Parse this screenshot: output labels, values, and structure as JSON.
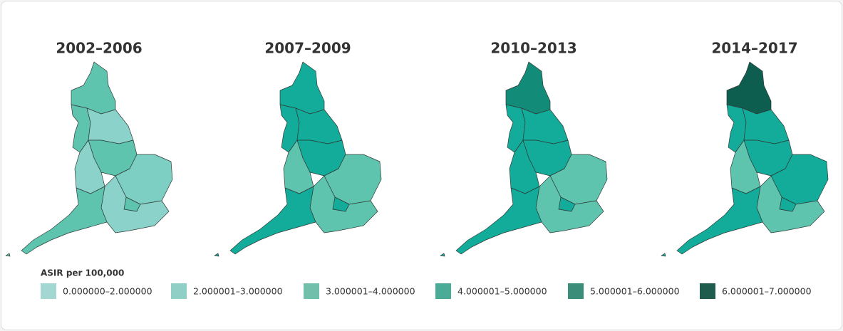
{
  "panels": [
    {
      "title": "2002–2006",
      "fills": [
        "#5ec4ae",
        "#5ec4ae",
        "#8bd3ca",
        "#5ec4ae",
        "#8bd3ca",
        "#7dcfc3",
        "#5ec4ae",
        "#8bd3ca",
        "#5ec4ae"
      ]
    },
    {
      "title": "2007–2009",
      "fills": [
        "#13ab99",
        "#13ab99",
        "#13ab99",
        "#13ab99",
        "#5ec4ae",
        "#5ec4ae",
        "#13ab99",
        "#5ec4ae",
        "#13ab99"
      ]
    },
    {
      "title": "2010–2013",
      "fills": [
        "#128c78",
        "#13ab99",
        "#13ab99",
        "#13ab99",
        "#13ab99",
        "#5ec4ae",
        "#13ab99",
        "#5ec4ae",
        "#13ab99"
      ]
    },
    {
      "title": "2014–2017",
      "fills": [
        "#0e5e4f",
        "#13ab99",
        "#13ab99",
        "#13ab99",
        "#5ec4ae",
        "#13ab99",
        "#13ab99",
        "#5ec4ae",
        "#13ab99"
      ]
    }
  ],
  "legend": {
    "title": "ASIR per 100,000",
    "items": [
      {
        "label": "0.000000–2.000000",
        "color": "#a3d8d2"
      },
      {
        "label": "2.000001–3.000000",
        "color": "#8fcfc6"
      },
      {
        "label": "3.000001–4.000000",
        "color": "#72c0ab"
      },
      {
        "label": "4.000001–5.000000",
        "color": "#4aab97"
      },
      {
        "label": "5.000001–6.000000",
        "color": "#3a8e79"
      },
      {
        "label": "6.000001–7.000000",
        "color": "#1f5c4e"
      }
    ]
  }
}
